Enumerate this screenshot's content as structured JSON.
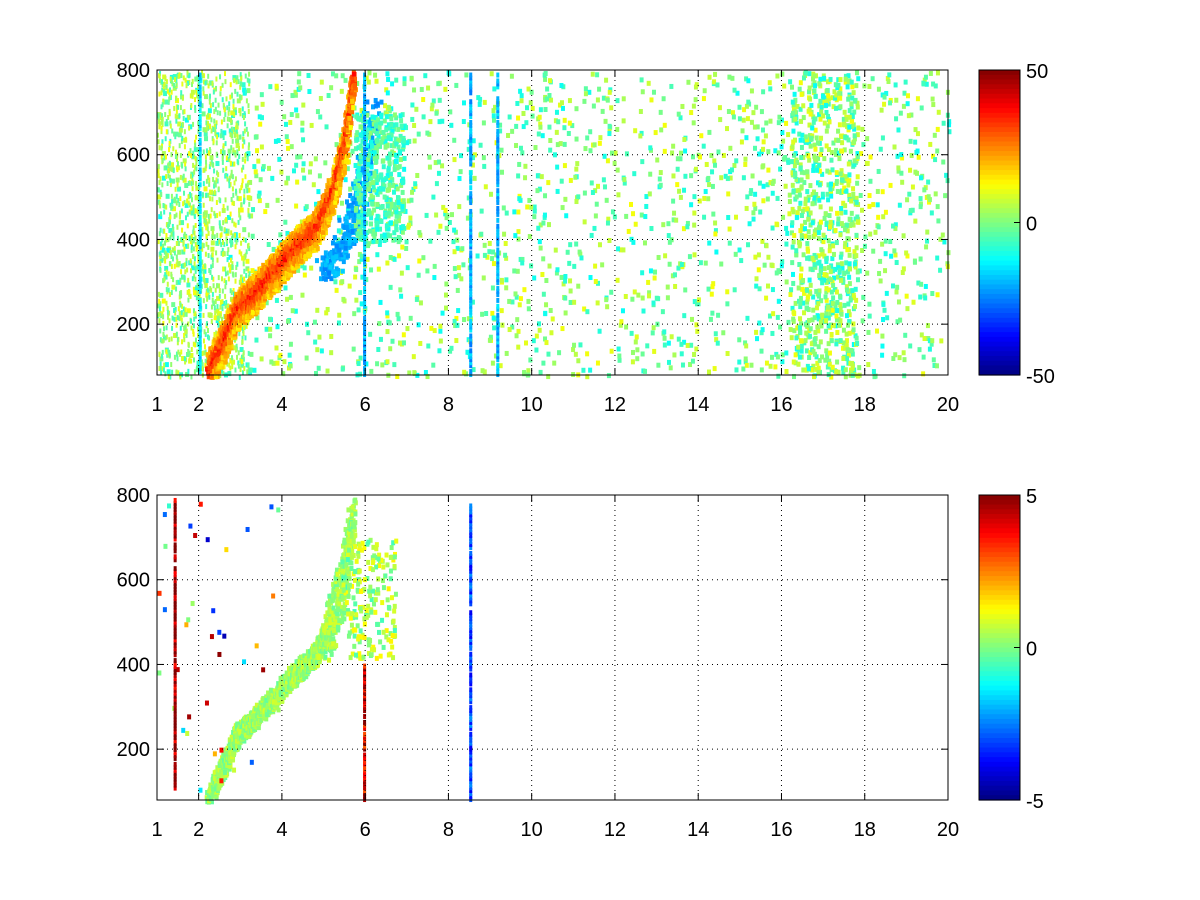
{
  "chart_data": [
    {
      "type": "heatmap",
      "title": "",
      "xlabel": "",
      "ylabel": "",
      "xlim": [
        1,
        20
      ],
      "ylim": [
        80,
        800
      ],
      "x_ticks": [
        "1",
        "2",
        "4",
        "6",
        "8",
        "10",
        "12",
        "14",
        "16",
        "18",
        "20"
      ],
      "x_tick_values": [
        1,
        2,
        4,
        6,
        8,
        10,
        12,
        14,
        16,
        18,
        20
      ],
      "y_ticks": [
        "200",
        "400",
        "600",
        "800"
      ],
      "y_tick_values": [
        200,
        400,
        600,
        800
      ],
      "grid": "dotted",
      "colormap": "jet",
      "colorbar": {
        "min": -50,
        "max": 50,
        "ticks": [
          "50",
          "0",
          "-50"
        ],
        "tick_values": [
          50,
          0,
          -50
        ],
        "placement": "right"
      },
      "features": {
        "ridge_curve": [
          [
            2.2,
            90
          ],
          [
            2.6,
            170
          ],
          [
            2.9,
            240
          ],
          [
            3.3,
            275
          ],
          [
            3.8,
            330
          ],
          [
            4.3,
            385
          ],
          [
            4.8,
            430
          ],
          [
            5.2,
            520
          ],
          [
            5.5,
            640
          ],
          [
            5.7,
            790
          ]
        ],
        "ridge_value": 35,
        "negative_band_value": -25,
        "vertical_lines": [
          {
            "x": 2.0,
            "value": -15
          },
          {
            "x": 5.95,
            "value": -20
          },
          {
            "x": 8.5,
            "value": -20
          },
          {
            "x": 9.15,
            "value": -20
          }
        ],
        "scatter_value_range": [
          -12,
          12
        ],
        "dense_column_band": [
          16.2,
          17.8
        ]
      }
    },
    {
      "type": "heatmap",
      "title": "",
      "xlabel": "",
      "ylabel": "",
      "xlim": [
        1,
        20
      ],
      "ylim": [
        80,
        800
      ],
      "x_ticks": [
        "1",
        "2",
        "4",
        "6",
        "8",
        "10",
        "12",
        "14",
        "16",
        "18",
        "20"
      ],
      "x_tick_values": [
        1,
        2,
        4,
        6,
        8,
        10,
        12,
        14,
        16,
        18,
        20
      ],
      "y_ticks": [
        "200",
        "400",
        "600",
        "800"
      ],
      "y_tick_values": [
        200,
        400,
        600,
        800
      ],
      "grid": "dotted",
      "colormap": "jet",
      "colorbar": {
        "min": -5,
        "max": 5,
        "ticks": [
          "5",
          "0",
          "-5"
        ],
        "tick_values": [
          5,
          0,
          -5
        ],
        "placement": "right"
      },
      "features": {
        "ridge_curve": [
          [
            2.2,
            90
          ],
          [
            2.6,
            170
          ],
          [
            2.9,
            240
          ],
          [
            3.3,
            275
          ],
          [
            3.8,
            330
          ],
          [
            4.3,
            385
          ],
          [
            4.8,
            430
          ],
          [
            5.2,
            520
          ],
          [
            5.5,
            640
          ],
          [
            5.7,
            790
          ]
        ],
        "ridge_value": 0.3,
        "vertical_lines": [
          {
            "x": 5.95,
            "y_range": [
              80,
              400
            ],
            "value": 4
          },
          {
            "x": 1.4,
            "y_range": [
              100,
              800
            ],
            "value": 5
          },
          {
            "x": 8.5,
            "y_range": [
              80,
              780
            ],
            "value": -3
          }
        ]
      }
    }
  ]
}
